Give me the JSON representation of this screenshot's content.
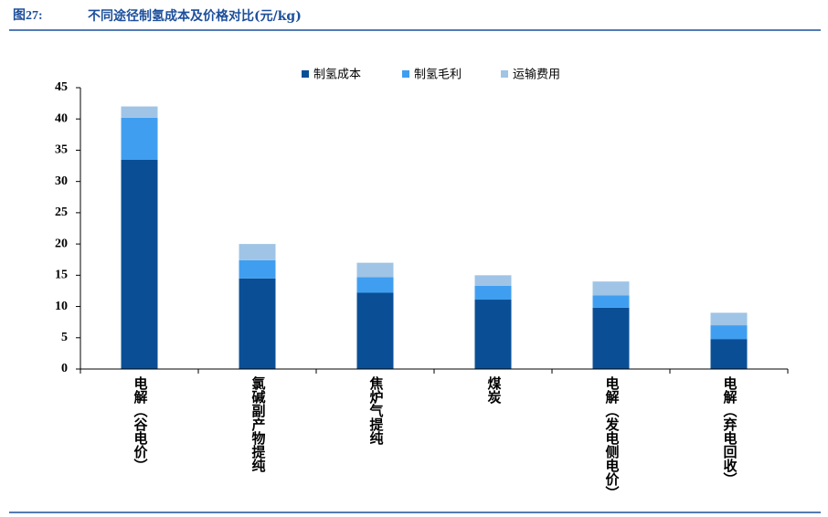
{
  "chart_data": {
    "type": "stacked_bar",
    "figure_label": "图27:",
    "title": "不同途径制氢成本及价格对比(元/kg)",
    "categories": [
      "电解（谷电价）",
      "氯碱副产物提纯",
      "焦炉气提纯",
      "煤炭",
      "电解（发电侧电价）",
      "电解（弃电回收）"
    ],
    "series": [
      {
        "name": "制氢成本",
        "color": "#0a4f96",
        "values": [
          33.5,
          14.5,
          12.2,
          11.1,
          9.8,
          4.8
        ]
      },
      {
        "name": "制氢毛利",
        "color": "#409ef0",
        "values": [
          6.7,
          2.9,
          2.5,
          2.2,
          2.0,
          2.2
        ]
      },
      {
        "name": "运输费用",
        "color": "#9fc4e6",
        "values": [
          1.8,
          2.6,
          2.3,
          1.7,
          2.2,
          2.0
        ]
      }
    ],
    "ylim": [
      0,
      45
    ],
    "yticks": [
      0,
      5,
      10,
      15,
      20,
      25,
      30,
      35,
      40,
      45
    ],
    "grid": false,
    "legend": "top"
  }
}
